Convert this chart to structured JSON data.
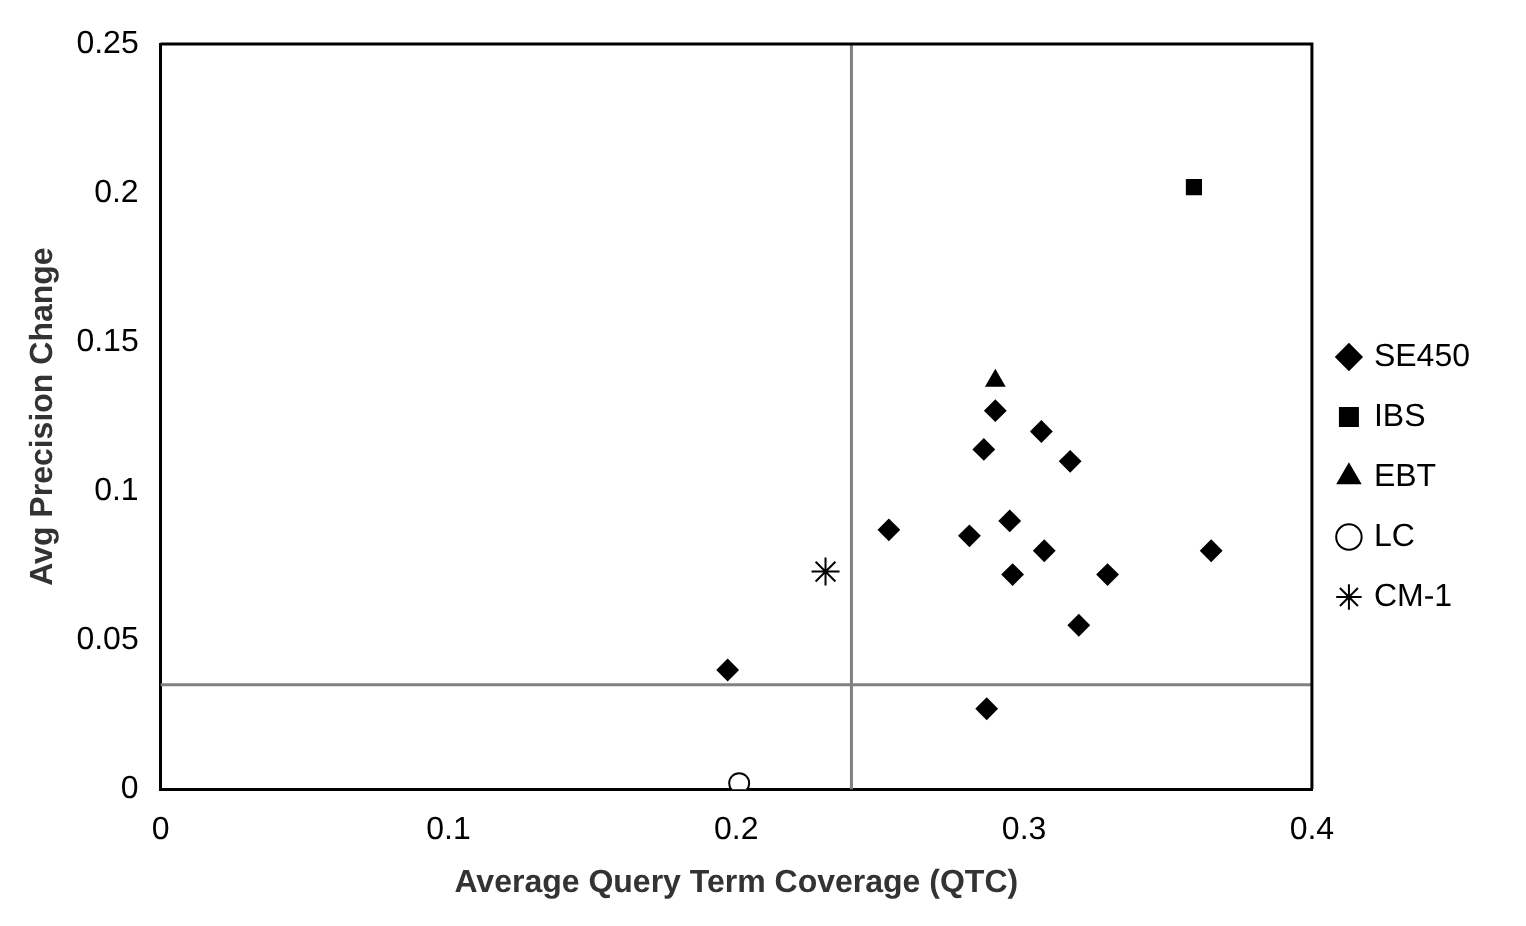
{
  "chart_data": {
    "type": "scatter",
    "xlabel": "Average Query Term Coverage (QTC)",
    "ylabel": "Avg Precision Change",
    "xlim": [
      0,
      0.4
    ],
    "xticks": [
      0,
      0.1,
      0.2,
      0.3,
      0.4
    ],
    "ylim": [
      0,
      0.25
    ],
    "yticks": [
      0,
      0.05,
      0.1,
      0.15,
      0.2,
      0.25
    ],
    "grid": false,
    "legend": "right",
    "ref_lines": [
      {
        "axis": "x",
        "value": 0.24,
        "color": "#808080"
      },
      {
        "axis": "y",
        "value": 0.035,
        "color": "#808080"
      }
    ],
    "series": [
      {
        "name": "SE450",
        "color": "#000000",
        "marker": "diamond",
        "x": [
          0.29,
          0.306,
          0.286,
          0.316,
          0.253,
          0.281,
          0.295,
          0.307,
          0.296,
          0.329,
          0.365,
          0.319,
          0.197,
          0.287
        ],
        "values": [
          0.127,
          0.12,
          0.114,
          0.11,
          0.087,
          0.085,
          0.09,
          0.08,
          0.072,
          0.072,
          0.08,
          0.055,
          0.04,
          0.027
        ]
      },
      {
        "name": "IBS",
        "color": "#000000",
        "marker": "square",
        "x": [
          0.359
        ],
        "values": [
          0.202
        ]
      },
      {
        "name": "EBT",
        "color": "#000000",
        "marker": "triangle",
        "x": [
          0.29
        ],
        "values": [
          0.137
        ]
      },
      {
        "name": "LC",
        "color": "#000000",
        "marker": "circle",
        "x": [
          0.201
        ],
        "values": [
          0.002
        ]
      },
      {
        "name": "CM-1",
        "color": "#000000",
        "marker": "cross",
        "x": [
          0.231
        ],
        "values": [
          0.073
        ]
      }
    ]
  }
}
